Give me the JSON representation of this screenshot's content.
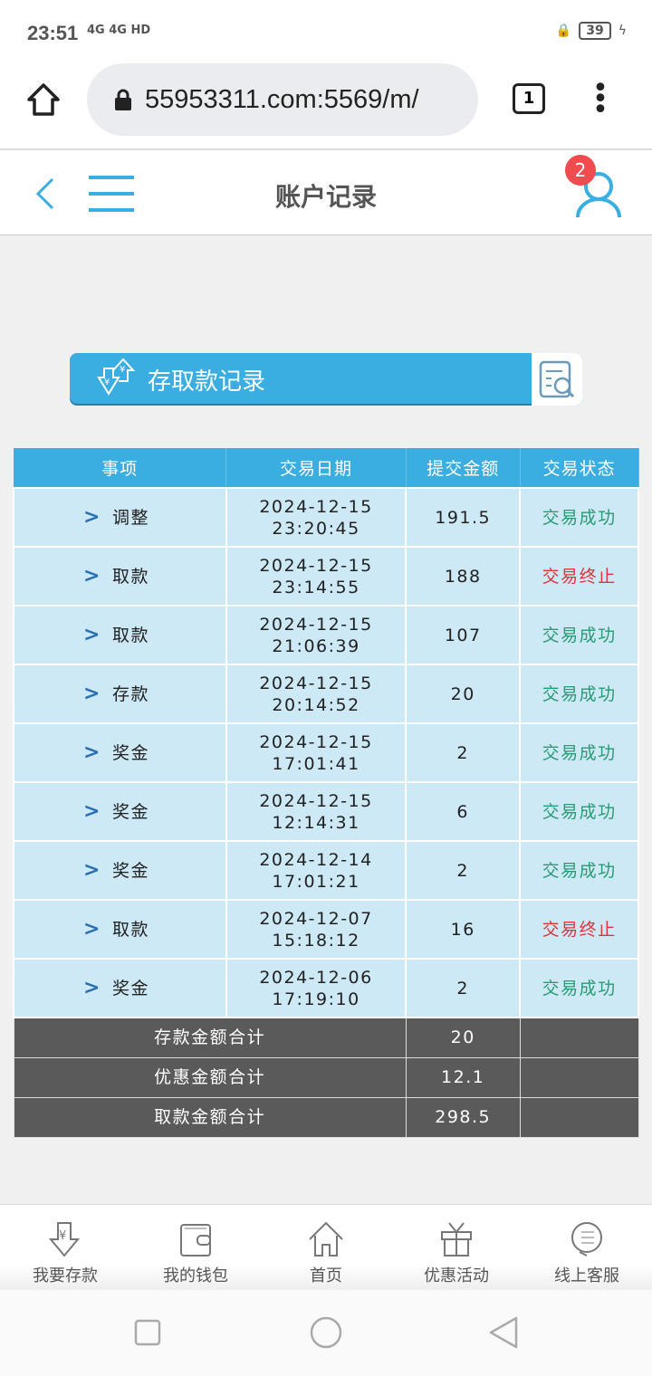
{
  "status_bar": {
    "time": "23:51",
    "signal": "4G 4G HD",
    "battery": "39"
  },
  "browser": {
    "url": "55953311.com:5569/m/",
    "tab_count": "1"
  },
  "header": {
    "title": "账户记录",
    "badge_count": "2"
  },
  "banner": {
    "label": "存取款记录"
  },
  "table": {
    "columns": [
      "事项",
      "交易日期",
      "提交金额",
      "交易状态"
    ],
    "rows": [
      {
        "item": "调整",
        "date": "2024-12-15",
        "time": "23:20:45",
        "amount": "191.5",
        "status": "交易成功",
        "ok": true
      },
      {
        "item": "取款",
        "date": "2024-12-15",
        "time": "23:14:55",
        "amount": "188",
        "status": "交易终止",
        "ok": false
      },
      {
        "item": "取款",
        "date": "2024-12-15",
        "time": "21:06:39",
        "amount": "107",
        "status": "交易成功",
        "ok": true
      },
      {
        "item": "存款",
        "date": "2024-12-15",
        "time": "20:14:52",
        "amount": "20",
        "status": "交易成功",
        "ok": true
      },
      {
        "item": "奖金",
        "date": "2024-12-15",
        "time": "17:01:41",
        "amount": "2",
        "status": "交易成功",
        "ok": true
      },
      {
        "item": "奖金",
        "date": "2024-12-15",
        "time": "12:14:31",
        "amount": "6",
        "status": "交易成功",
        "ok": true
      },
      {
        "item": "奖金",
        "date": "2024-12-14",
        "time": "17:01:21",
        "amount": "2",
        "status": "交易成功",
        "ok": true
      },
      {
        "item": "取款",
        "date": "2024-12-07",
        "time": "15:18:12",
        "amount": "16",
        "status": "交易终止",
        "ok": false
      },
      {
        "item": "奖金",
        "date": "2024-12-06",
        "time": "17:19:10",
        "amount": "2",
        "status": "交易成功",
        "ok": true
      }
    ],
    "summary": [
      {
        "label": "存款金额合计",
        "value": "20"
      },
      {
        "label": "优惠金额合计",
        "value": "12.1"
      },
      {
        "label": "取款金额合计",
        "value": "298.5"
      }
    ]
  },
  "bottom_nav": [
    {
      "label": "我要存款",
      "icon": "deposit-icon"
    },
    {
      "label": "我的钱包",
      "icon": "wallet-icon"
    },
    {
      "label": "首页",
      "icon": "home-icon"
    },
    {
      "label": "优惠活动",
      "icon": "gift-icon"
    },
    {
      "label": "线上客服",
      "icon": "support-icon"
    }
  ],
  "colors": {
    "accent": "#3aaee0",
    "success": "#2a9a72",
    "fail": "#e0343c",
    "summary_bg": "#5a5a5a"
  }
}
